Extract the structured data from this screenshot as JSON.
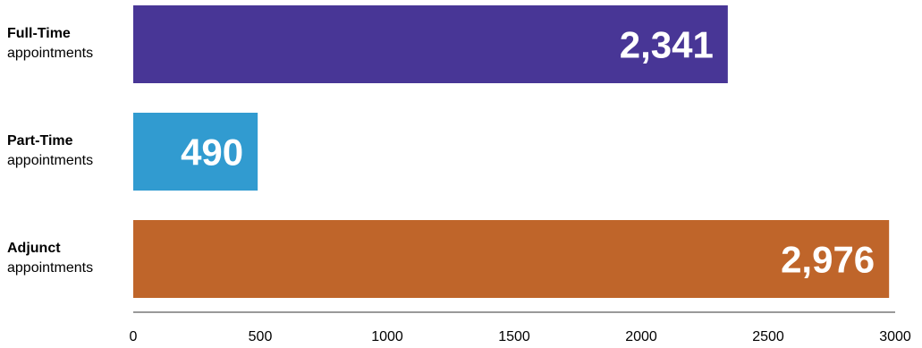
{
  "chart_data": {
    "type": "bar",
    "orientation": "horizontal",
    "categories": [
      {
        "title": "Full-Time",
        "subtitle": "appointments"
      },
      {
        "title": "Part-Time",
        "subtitle": "appointments"
      },
      {
        "title": "Adjunct",
        "subtitle": "appointments"
      }
    ],
    "values": [
      2341,
      490,
      2976
    ],
    "value_labels": [
      "2,341",
      "490",
      "2,976"
    ],
    "colors": [
      "#483696",
      "#319bd0",
      "#bf652a"
    ],
    "xlim": [
      0,
      3000
    ],
    "xticks": [
      0,
      500,
      1000,
      1500,
      2000,
      2500,
      3000
    ],
    "xtick_labels": [
      "0",
      "500",
      "1000",
      "1500",
      "2000",
      "2500",
      "3000"
    ],
    "grid": false,
    "legend": "none"
  }
}
